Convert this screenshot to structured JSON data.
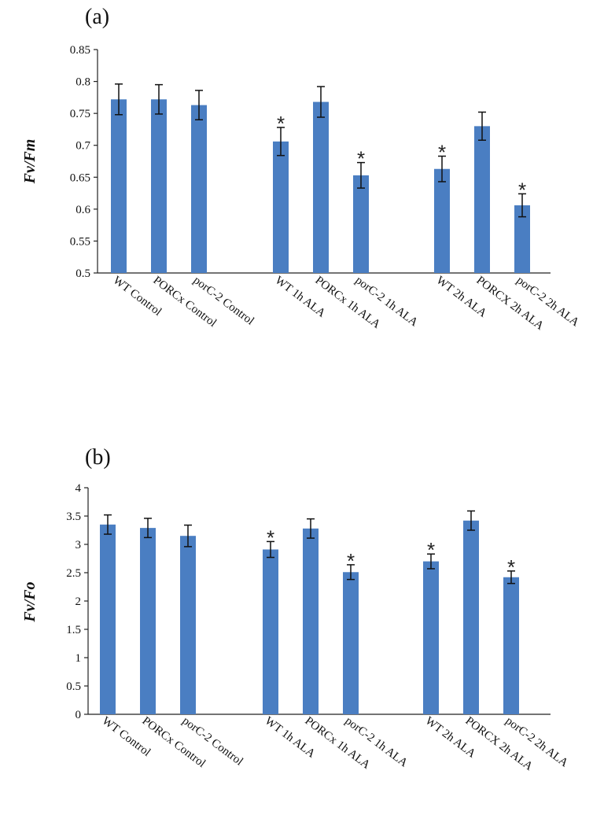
{
  "chart_data": [
    {
      "type": "bar",
      "panel_label": "(a)",
      "ylabel": "Fv/Fm",
      "ylim": [
        0.5,
        0.85
      ],
      "yticks": [
        "0.5",
        "0.55",
        "0.6",
        "0.65",
        "0.7",
        "0.75",
        "0.8",
        "0.85"
      ],
      "categories": [
        "WT Control",
        "PORCx Control",
        "porC-2 Control",
        "WT 1h ALA",
        "PORCx 1h ALA",
        "porC-2 1h ALA",
        "WT 2h ALA",
        "PORCX 2h ALA",
        "porC-2 2h ALA"
      ],
      "values": [
        0.772,
        0.772,
        0.763,
        0.706,
        0.768,
        0.653,
        0.663,
        0.73,
        0.606
      ],
      "errors": [
        0.024,
        0.023,
        0.023,
        0.022,
        0.024,
        0.02,
        0.02,
        0.022,
        0.018
      ],
      "significant": [
        false,
        false,
        false,
        true,
        false,
        true,
        true,
        false,
        true
      ],
      "significance_marker": "*",
      "color": "#4a7ec2"
    },
    {
      "type": "bar",
      "panel_label": "(b)",
      "ylabel": "Fv/Fo",
      "ylim": [
        0,
        4
      ],
      "yticks": [
        "0",
        "0.5",
        "1",
        "1.5",
        "2",
        "2.5",
        "3",
        "3.5",
        "4"
      ],
      "categories": [
        "WT Control",
        "PORCx Control",
        "porC-2 Control",
        "WT 1h ALA",
        "PORCx 1h ALA",
        "porC-2 1h ALA",
        "WT 2h ALA",
        "PORCX 2h ALA",
        "porC-2 2h ALA"
      ],
      "values": [
        3.35,
        3.29,
        3.15,
        2.91,
        3.28,
        2.51,
        2.7,
        3.42,
        2.42
      ],
      "errors": [
        0.17,
        0.17,
        0.19,
        0.14,
        0.17,
        0.13,
        0.13,
        0.17,
        0.11
      ],
      "significant": [
        false,
        false,
        false,
        true,
        false,
        true,
        true,
        false,
        true
      ],
      "significance_marker": "*",
      "color": "#4a7ec2"
    }
  ]
}
